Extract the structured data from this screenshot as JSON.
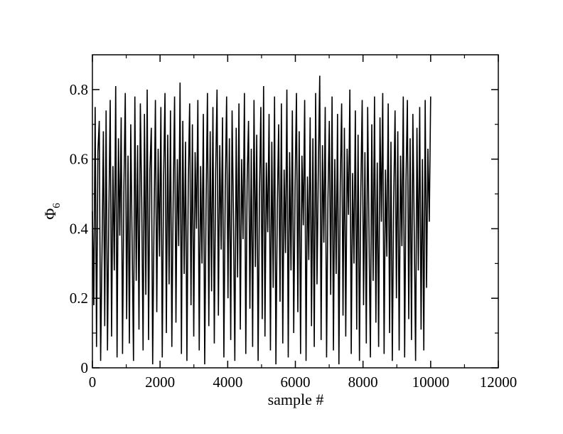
{
  "chart_data": {
    "type": "line",
    "title": "",
    "xlabel": "sample #",
    "ylabel": {
      "symbol": "Φ",
      "subscript": "6"
    },
    "xlim": [
      0,
      12000
    ],
    "ylim": [
      0,
      0.9
    ],
    "x_ticks": [
      0,
      2000,
      4000,
      6000,
      8000,
      10000,
      12000
    ],
    "x_tick_labels": [
      "0",
      "2000",
      "4000",
      "6000",
      "8000",
      "10000",
      "12000"
    ],
    "y_ticks": [
      0,
      0.2,
      0.4,
      0.6,
      0.8
    ],
    "y_tick_labels": [
      "0",
      "0.2",
      "0.4",
      "0.6",
      "0.8"
    ],
    "grid": false,
    "legend": "none",
    "series": [
      {
        "color": "#000000",
        "x_range": [
          0,
          10000
        ],
        "values": [
          0.45,
          0.18,
          0.75,
          0.06,
          0.62,
          0.71,
          0.02,
          0.33,
          0.68,
          0.12,
          0.74,
          0.05,
          0.44,
          0.77,
          0.09,
          0.58,
          0.28,
          0.81,
          0.03,
          0.66,
          0.38,
          0.72,
          0.04,
          0.52,
          0.79,
          0.14,
          0.61,
          0.07,
          0.7,
          0.36,
          0.02,
          0.78,
          0.25,
          0.64,
          0.11,
          0.76,
          0.48,
          0.05,
          0.73,
          0.21,
          0.8,
          0.08,
          0.57,
          0.69,
          0.01,
          0.42,
          0.77,
          0.16,
          0.63,
          0.32,
          0.75,
          0.03,
          0.55,
          0.79,
          0.1,
          0.67,
          0.24,
          0.74,
          0.06,
          0.49,
          0.78,
          0.13,
          0.6,
          0.35,
          0.82,
          0.04,
          0.71,
          0.27,
          0.65,
          0.02,
          0.53,
          0.76,
          0.18,
          0.7,
          0.09,
          0.62,
          0.4,
          0.77,
          0.05,
          0.58,
          0.3,
          0.73,
          0.01,
          0.47,
          0.79,
          0.12,
          0.68,
          0.22,
          0.75,
          0.07,
          0.56,
          0.8,
          0.15,
          0.64,
          0.34,
          0.72,
          0.03,
          0.51,
          0.78,
          0.2,
          0.66,
          0.08,
          0.74,
          0.43,
          0.02,
          0.69,
          0.26,
          0.76,
          0.11,
          0.6,
          0.37,
          0.79,
          0.04,
          0.54,
          0.71,
          0.17,
          0.63,
          0.06,
          0.77,
          0.29,
          0.67,
          0.02,
          0.5,
          0.75,
          0.14,
          0.81,
          0.09,
          0.59,
          0.39,
          0.73,
          0.05,
          0.65,
          0.23,
          0.78,
          0.01,
          0.46,
          0.7,
          0.19,
          0.76,
          0.07,
          0.57,
          0.33,
          0.8,
          0.03,
          0.62,
          0.28,
          0.74,
          0.1,
          0.52,
          0.79,
          0.16,
          0.68,
          0.04,
          0.61,
          0.41,
          0.77,
          0.02,
          0.55,
          0.31,
          0.72,
          0.12,
          0.66,
          0.06,
          0.79,
          0.24,
          0.58,
          0.84,
          0.08,
          0.64,
          0.36,
          0.75,
          0.03,
          0.49,
          0.71,
          0.21,
          0.78,
          0.05,
          0.6,
          0.27,
          0.73,
          0.01,
          0.53,
          0.76,
          0.15,
          0.69,
          0.09,
          0.63,
          0.44,
          0.8,
          0.04,
          0.56,
          0.3,
          0.74,
          0.11,
          0.67,
          0.02,
          0.51,
          0.77,
          0.18,
          0.62,
          0.07,
          0.75,
          0.38,
          0.03,
          0.7,
          0.25,
          0.78,
          0.13,
          0.59,
          0.06,
          0.72,
          0.42,
          0.79,
          0.04,
          0.57,
          0.32,
          0.76,
          0.1,
          0.65,
          0.02,
          0.48,
          0.74,
          0.2,
          0.68,
          0.05,
          0.61,
          0.35,
          0.78,
          0.03,
          0.54,
          0.77,
          0.14,
          0.66,
          0.08,
          0.73,
          0.4,
          0.02,
          0.69,
          0.28,
          0.75,
          0.11,
          0.6,
          0.05,
          0.77,
          0.23,
          0.63,
          0.42,
          0.78
        ]
      }
    ]
  }
}
